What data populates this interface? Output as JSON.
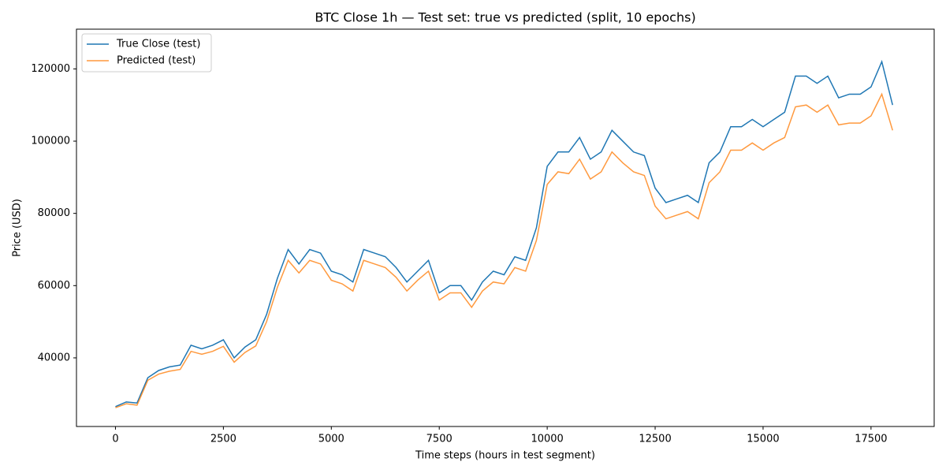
{
  "chart_data": {
    "type": "line",
    "title": "BTC Close 1h — Test set: true vs predicted (split, 10 epochs)",
    "x_label": "Time steps (hours in test segment)",
    "y_label": "Price (USD)",
    "x": [
      0,
      250,
      500,
      750,
      1000,
      1250,
      1500,
      1750,
      2000,
      2250,
      2500,
      2750,
      3000,
      3250,
      3500,
      3750,
      4000,
      4250,
      4500,
      4750,
      5000,
      5250,
      5500,
      5750,
      6000,
      6250,
      6500,
      6750,
      7000,
      7250,
      7500,
      7750,
      8000,
      8250,
      8500,
      8750,
      9000,
      9250,
      9500,
      9750,
      10000,
      10250,
      10500,
      10750,
      11000,
      11250,
      11500,
      11750,
      12000,
      12250,
      12500,
      12750,
      13000,
      13250,
      13500,
      13750,
      14000,
      14250,
      14500,
      14750,
      15000,
      15250,
      15500,
      15750,
      16000,
      16250,
      16500,
      16750,
      17000,
      17250,
      17500,
      17750,
      18000
    ],
    "series": [
      {
        "name": "True Close (test)",
        "color": "#1f77b4",
        "values": [
          26500,
          27800,
          27500,
          34500,
          36500,
          37500,
          38000,
          43500,
          42500,
          43500,
          45000,
          40000,
          43000,
          45000,
          52000,
          62000,
          70000,
          66000,
          70000,
          69000,
          64000,
          63000,
          61000,
          70000,
          69000,
          68000,
          65000,
          61000,
          64000,
          67000,
          58000,
          60000,
          60000,
          56000,
          61000,
          64000,
          63000,
          68000,
          67000,
          76000,
          93000,
          97000,
          97000,
          101000,
          95000,
          97000,
          103000,
          100000,
          97000,
          96000,
          87000,
          83000,
          84000,
          85000,
          83000,
          94000,
          97000,
          104000,
          104000,
          106000,
          104000,
          106000,
          108000,
          118000,
          118000,
          116000,
          118000,
          112000,
          113000,
          113000,
          115000,
          122000,
          110000
        ]
      },
      {
        "name": "Predicted (test)",
        "color": "#ff7f0e",
        "values": [
          26200,
          27300,
          26900,
          33800,
          35500,
          36300,
          36800,
          41800,
          41000,
          41800,
          43200,
          38800,
          41500,
          43300,
          50000,
          59500,
          67000,
          63500,
          67000,
          66000,
          61500,
          60500,
          58500,
          67000,
          66000,
          65000,
          62300,
          58500,
          61500,
          64000,
          56000,
          58000,
          58000,
          54000,
          58500,
          61000,
          60500,
          65000,
          64000,
          72500,
          88000,
          91500,
          91000,
          95000,
          89500,
          91500,
          97000,
          94000,
          91500,
          90500,
          82000,
          78500,
          79500,
          80500,
          78500,
          88500,
          91500,
          97500,
          97500,
          99500,
          97500,
          99500,
          101000,
          109500,
          110000,
          108000,
          110000,
          104500,
          105000,
          105000,
          107000,
          113000,
          103000
        ]
      }
    ],
    "xlim": [
      -903,
      18963
    ],
    "ylim": [
      21000,
      131000
    ],
    "xticks": [
      0,
      2500,
      5000,
      7500,
      10000,
      12500,
      15000,
      17500
    ],
    "yticks": [
      40000,
      60000,
      80000,
      100000,
      120000
    ],
    "legend": "upper left"
  }
}
